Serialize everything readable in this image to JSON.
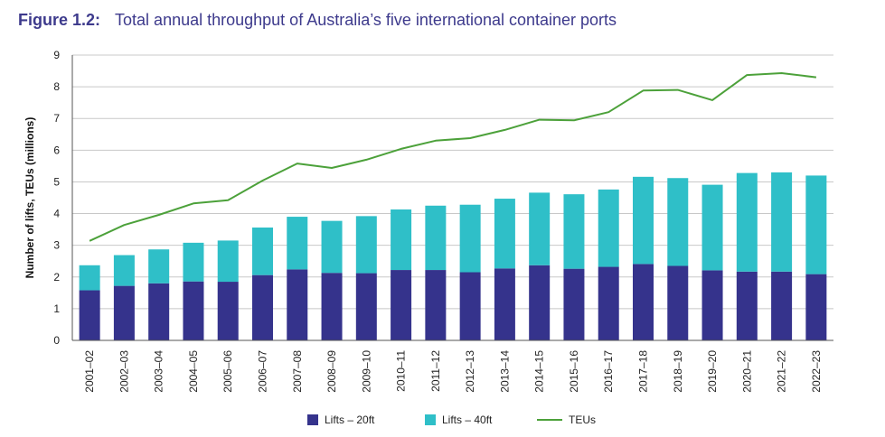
{
  "figure": {
    "label": "Figure 1.2:",
    "title": "Total annual throughput of Australia’s five international container ports"
  },
  "colors": {
    "lifts20": "#35338c",
    "lifts40": "#2fbfc8",
    "teus": "#4ca13a",
    "axis": "#555555",
    "grid": "#c8c8c8",
    "title": "#3d3a8c"
  },
  "chart_data": {
    "type": "bar",
    "stacked": true,
    "title": "Total annual throughput of Australia’s five international container ports",
    "xlabel": "",
    "ylabel": "Number of lifts, TEUs (millions)",
    "ylim": [
      0,
      9
    ],
    "yticks": [
      0,
      1,
      2,
      3,
      4,
      5,
      6,
      7,
      8,
      9
    ],
    "grid": true,
    "legend_position": "bottom",
    "categories": [
      "2001–02",
      "2002–03",
      "2003–04",
      "2004–05",
      "2005–06",
      "2006–07",
      "2007–08",
      "2008–09",
      "2009–10",
      "2010–11",
      "2011–12",
      "2012–13",
      "2013–14",
      "2014–15",
      "2015–16",
      "2016–17",
      "2017–18",
      "2018–19",
      "2019–20",
      "2020–21",
      "2021–22",
      "2022–23"
    ],
    "series": [
      {
        "name": "Lifts – 20ft",
        "kind": "bar",
        "values": [
          1.58,
          1.72,
          1.8,
          1.86,
          1.85,
          2.06,
          2.24,
          2.13,
          2.12,
          2.22,
          2.22,
          2.15,
          2.27,
          2.37,
          2.26,
          2.32,
          2.41,
          2.35,
          2.21,
          2.17,
          2.17,
          2.09
        ]
      },
      {
        "name": "Lifts – 40ft",
        "kind": "bar",
        "values": [
          0.79,
          0.97,
          1.07,
          1.22,
          1.3,
          1.5,
          1.66,
          1.64,
          1.8,
          1.91,
          2.03,
          2.13,
          2.2,
          2.29,
          2.35,
          2.44,
          2.75,
          2.77,
          2.7,
          3.11,
          3.13,
          3.11
        ]
      },
      {
        "name": "TEUs",
        "kind": "line",
        "values": [
          3.14,
          3.64,
          3.96,
          4.32,
          4.42,
          5.04,
          5.58,
          5.44,
          5.7,
          6.04,
          6.3,
          6.38,
          6.64,
          6.96,
          6.94,
          7.2,
          7.88,
          7.9,
          7.58,
          8.37,
          8.43,
          8.3
        ]
      }
    ]
  }
}
